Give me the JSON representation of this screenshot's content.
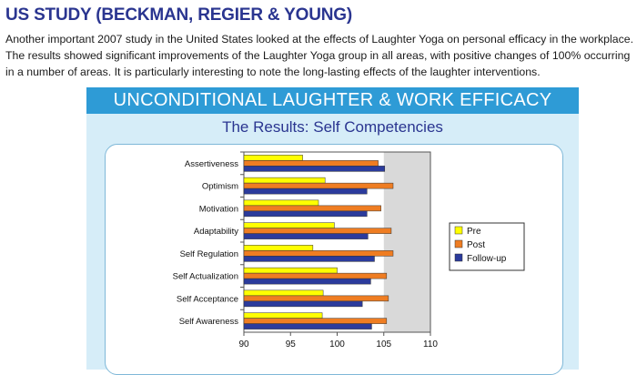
{
  "article": {
    "heading": "US STUDY (BECKMAN, REGIER & YOUNG)",
    "paragraph": "Another important 2007 study in the United States looked at the effects of Laughter Yoga on personal efficacy in the workplace. The results showed significant improvements of the Laughter Yoga group in all areas, with positive changes of 100% occurring in a number of areas. It is particularly interesting to note the long-lasting effects of the laughter interventions."
  },
  "figure": {
    "banner": "UNCONDITIONAL LAUGHTER & WORK EFFICACY",
    "subtitle": "The Results: Self Competencies"
  },
  "chart_data": {
    "type": "bar",
    "orientation": "horizontal",
    "categories": [
      "Assertiveness",
      "Optimism",
      "Motivation",
      "Adaptability",
      "Self Regulation",
      "Self Actualization",
      "Self Acceptance",
      "Self Awareness"
    ],
    "series": [
      {
        "name": "Pre",
        "color": "#ffff00",
        "values": [
          96.3,
          98.7,
          98.0,
          99.7,
          97.4,
          100.0,
          98.5,
          98.4
        ]
      },
      {
        "name": "Post",
        "color": "#ef7d22",
        "values": [
          104.4,
          106.0,
          104.7,
          105.8,
          106.0,
          105.3,
          105.5,
          105.3
        ]
      },
      {
        "name": "Follow-up",
        "color": "#2b3b9c",
        "values": [
          105.1,
          103.2,
          103.2,
          103.3,
          104.0,
          103.6,
          102.7,
          103.7
        ]
      }
    ],
    "xlim": [
      90,
      110
    ],
    "xticks": [
      "90",
      "95",
      "100",
      "105",
      "110"
    ],
    "shaded_region": [
      105,
      110
    ],
    "grid": false,
    "legend_position": "right",
    "colors": {
      "shade": "#d9d9d9",
      "bar_stroke": "#333333"
    }
  }
}
